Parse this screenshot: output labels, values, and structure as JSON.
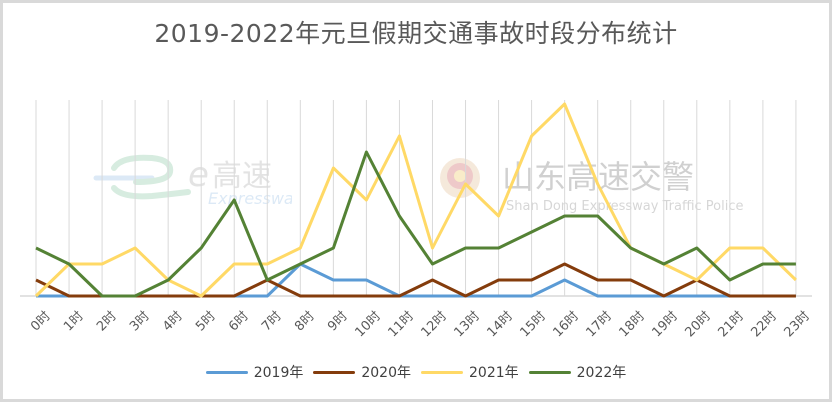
{
  "chart_data": {
    "type": "line",
    "title": "2019-2022年元旦假期交通事故时段分布统计",
    "xlabel": "",
    "ylabel": "",
    "categories": [
      "0时",
      "1时",
      "2时",
      "3时",
      "4时",
      "5时",
      "6时",
      "7时",
      "8时",
      "9时",
      "10时",
      "11时",
      "12时",
      "13时",
      "14时",
      "15时",
      "16时",
      "17时",
      "18时",
      "19时",
      "20时",
      "21时",
      "22时",
      "23时"
    ],
    "series": [
      {
        "name": "2019年",
        "color": "#5b9bd5",
        "values": [
          0,
          0,
          0,
          0,
          0,
          0,
          0,
          0,
          2,
          1,
          1,
          0,
          0,
          0,
          0,
          0,
          1,
          0,
          0,
          0,
          0,
          0,
          0,
          0
        ]
      },
      {
        "name": "2020年",
        "color": "#843c0c",
        "values": [
          1,
          0,
          0,
          0,
          0,
          0,
          0,
          1,
          0,
          0,
          0,
          0,
          1,
          0,
          1,
          1,
          2,
          1,
          1,
          0,
          1,
          0,
          0,
          0
        ]
      },
      {
        "name": "2021年",
        "color": "#ffd966",
        "values": [
          0,
          2,
          2,
          3,
          1,
          0,
          2,
          2,
          3,
          8,
          6,
          10,
          3,
          7,
          5,
          10,
          12,
          7,
          3,
          2,
          1,
          3,
          3,
          1
        ]
      },
      {
        "name": "2022年",
        "color": "#548235",
        "values": [
          3,
          2,
          0,
          0,
          1,
          3,
          6,
          1,
          2,
          3,
          9,
          5,
          2,
          3,
          3,
          4,
          5,
          5,
          3,
          2,
          3,
          1,
          2,
          2
        ]
      }
    ],
    "ylim": [
      0,
      12
    ],
    "grid": "vertical",
    "legend_position": "bottom"
  },
  "watermarks": {
    "left": {
      "cn": "高速",
      "en": "Expressway"
    },
    "right": {
      "cn": "山东高速交警",
      "en": "Shan Dong Expressway Traffic Police"
    }
  }
}
